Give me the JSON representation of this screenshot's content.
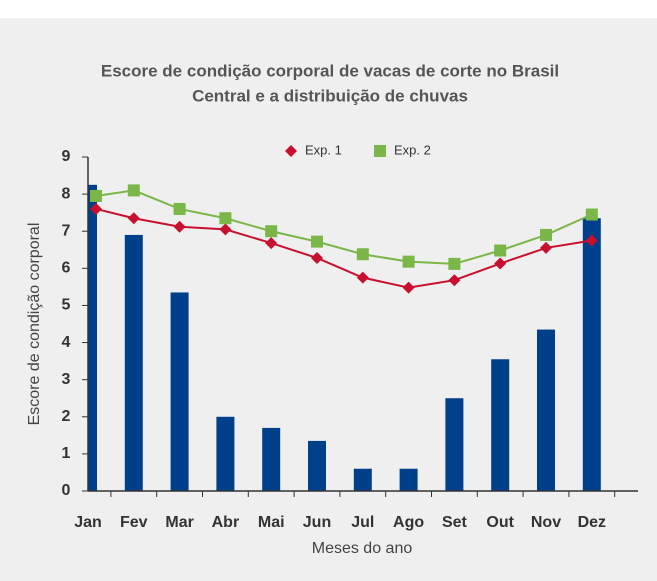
{
  "chart_data": {
    "type": "combo",
    "title": [
      "Escore de condição corporal de vacas de corte no Brasil",
      "Central e a distribuição de chuvas"
    ],
    "x_label": "Meses do ano",
    "y_label": "Escore de condição corporal",
    "categories": [
      "Jan",
      "Fev",
      "Mar",
      "Abr",
      "Mai",
      "Jun",
      "Jul",
      "Ago",
      "Set",
      "Out",
      "Nov",
      "Dez"
    ],
    "series": [
      {
        "type": "bar",
        "color": "#003f8a",
        "values": [
          8.25,
          6.9,
          5.35,
          2.0,
          1.7,
          1.35,
          0.6,
          0.6,
          2.5,
          3.55,
          4.35,
          7.35
        ]
      },
      {
        "type": "line",
        "name": "Exp. 1",
        "color": "#c8102e",
        "marker": "diamond",
        "values": [
          7.6,
          7.35,
          7.12,
          7.05,
          6.68,
          6.28,
          5.75,
          5.48,
          5.68,
          6.13,
          6.55,
          6.75
        ]
      },
      {
        "type": "line",
        "name": "Exp. 2",
        "color": "#7ab648",
        "marker": "square",
        "values": [
          7.95,
          8.1,
          7.6,
          7.35,
          7.0,
          6.72,
          6.38,
          6.18,
          6.12,
          6.48,
          6.9,
          7.45
        ]
      }
    ],
    "ylim": [
      0,
      9
    ],
    "yticks": [
      0,
      1,
      2,
      3,
      4,
      5,
      6,
      7,
      8,
      9
    ],
    "legend": "top"
  }
}
